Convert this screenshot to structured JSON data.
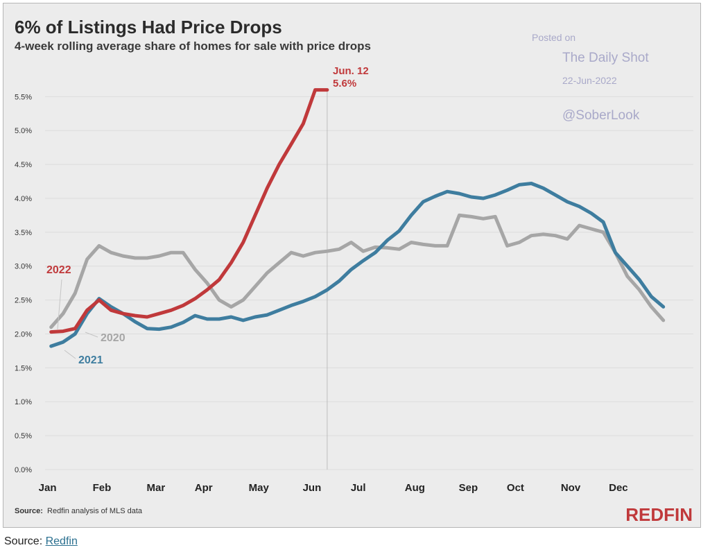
{
  "chart_data": {
    "type": "line",
    "title": "6% of Listings Had Price Drops",
    "subtitle": "4-week rolling average share of homes for sale with price drops",
    "ylim": [
      0,
      5.8
    ],
    "y_ticks": [
      0,
      0.5,
      1,
      1.5,
      2,
      2.5,
      3,
      3.5,
      4,
      4.5,
      5,
      5.5
    ],
    "y_tick_labels": [
      "0.0%",
      "0.5%",
      "1.0%",
      "1.5%",
      "2.0%",
      "2.5%",
      "3.0%",
      "3.5%",
      "4.0%",
      "4.5%",
      "5.0%",
      "5.5%"
    ],
    "x_categories": [
      "Jan",
      "Feb",
      "Mar",
      "Apr",
      "May",
      "Jun",
      "Jul",
      "Aug",
      "Sep",
      "Oct",
      "Nov",
      "Dec"
    ],
    "x_unit": "week of year",
    "grid": true,
    "series": [
      {
        "name": "2020",
        "color": "#a6a6a6",
        "x": [
          1,
          3,
          5,
          7,
          9,
          11,
          13,
          15,
          17,
          19,
          21,
          23,
          25,
          27,
          29,
          31,
          33,
          35,
          37,
          39,
          41,
          43,
          45,
          47,
          49,
          51,
          53,
          55,
          57,
          59,
          61,
          63,
          65,
          67,
          69,
          71,
          73,
          75,
          77,
          79,
          81,
          83,
          85,
          87,
          89,
          91,
          93,
          95,
          97,
          99,
          101,
          103
        ],
        "y": [
          2.1,
          2.3,
          2.6,
          3.1,
          3.3,
          3.2,
          3.15,
          3.12,
          3.12,
          3.15,
          3.2,
          3.2,
          2.95,
          2.75,
          2.5,
          2.4,
          2.5,
          2.7,
          2.9,
          3.05,
          3.2,
          3.15,
          3.2,
          3.22,
          3.25,
          3.35,
          3.22,
          3.28,
          3.27,
          3.25,
          3.35,
          3.32,
          3.3,
          3.3,
          3.75,
          3.73,
          3.7,
          3.73,
          3.3,
          3.35,
          3.45,
          3.47,
          3.45,
          3.4,
          3.6,
          3.55,
          3.5,
          3.2,
          2.85,
          2.65,
          2.4,
          2.2
        ]
      },
      {
        "name": "2021",
        "color": "#3e7d9f",
        "x": [
          1,
          3,
          5,
          7,
          9,
          11,
          13,
          15,
          17,
          19,
          21,
          23,
          25,
          27,
          29,
          31,
          33,
          35,
          37,
          39,
          41,
          43,
          45,
          47,
          49,
          51,
          53,
          55,
          57,
          59,
          61,
          63,
          65,
          67,
          69,
          71,
          73,
          75,
          77,
          79,
          81,
          83,
          85,
          87,
          89,
          91,
          93,
          95,
          97,
          99,
          101,
          103
        ],
        "y": [
          1.82,
          1.88,
          2.0,
          2.3,
          2.52,
          2.4,
          2.3,
          2.18,
          2.08,
          2.07,
          2.1,
          2.17,
          2.27,
          2.22,
          2.22,
          2.25,
          2.2,
          2.25,
          2.28,
          2.35,
          2.42,
          2.48,
          2.55,
          2.65,
          2.78,
          2.95,
          3.08,
          3.2,
          3.38,
          3.52,
          3.75,
          3.95,
          4.03,
          4.1,
          4.07,
          4.02,
          4.0,
          4.05,
          4.12,
          4.2,
          4.22,
          4.15,
          4.05,
          3.95,
          3.88,
          3.78,
          3.65,
          3.2,
          3.0,
          2.8,
          2.55,
          2.4
        ]
      },
      {
        "name": "2022",
        "color": "#c0393b",
        "x": [
          1,
          3,
          5,
          7,
          9,
          11,
          13,
          15,
          17,
          19,
          21,
          23,
          25,
          27,
          29,
          31,
          33,
          35,
          37,
          39,
          41,
          43,
          45,
          47
        ],
        "y": [
          2.03,
          2.04,
          2.08,
          2.35,
          2.5,
          2.35,
          2.3,
          2.27,
          2.25,
          2.3,
          2.35,
          2.42,
          2.52,
          2.65,
          2.8,
          3.05,
          3.35,
          3.75,
          4.15,
          4.5,
          4.8,
          5.1,
          5.6,
          5.6
        ]
      }
    ],
    "series_labels": [
      {
        "series": "2022",
        "text": "2022"
      },
      {
        "series": "2020",
        "text": "2020"
      },
      {
        "series": "2021",
        "text": "2021"
      }
    ],
    "annotation": {
      "date": "Jun. 12",
      "value": "5.6%",
      "x": 47,
      "y": 5.6
    },
    "watermark": {
      "line1": "Posted on",
      "line2": "The Daily Shot",
      "line3": "22-Jun-2022",
      "line4": "@SoberLook"
    },
    "source_bold": "Source:",
    "source_text": "Redfin analysis of MLS data",
    "brand": "REDFIN"
  },
  "footer": {
    "label": "Source:",
    "link": "Redfin"
  }
}
